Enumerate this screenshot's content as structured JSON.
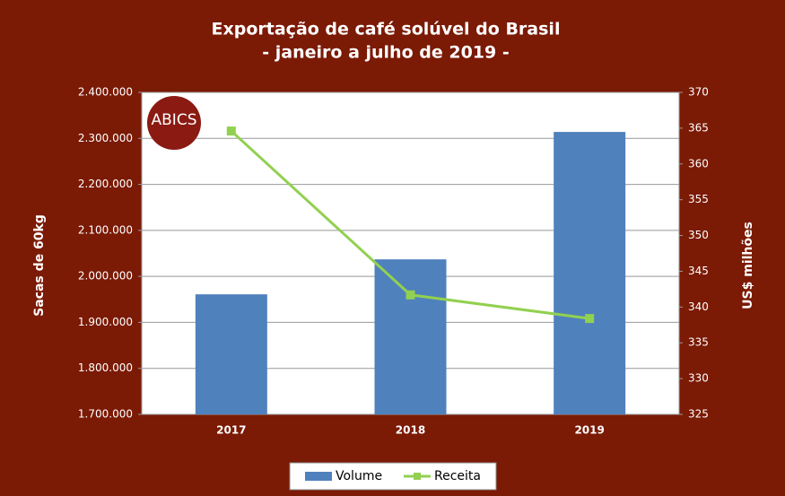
{
  "chart_data": {
    "type": "bar-line",
    "title": "Exportação de café solúvel do Brasil",
    "subtitle": "- janeiro a julho de 2019 -",
    "logo": "ABICS",
    "categories": [
      "2017",
      "2018",
      "2019"
    ],
    "series": [
      {
        "name": "Volume",
        "type": "bar",
        "color": "#4f81bd",
        "values": [
          1961000,
          2037000,
          2314000
        ]
      },
      {
        "name": "Receita",
        "type": "line",
        "color": "#92d050",
        "axis": "y2",
        "values": [
          364.6,
          341.7,
          338.4
        ]
      }
    ],
    "ylabel": "Sacas de 60kg",
    "y2label": "US$ milhões",
    "ylim": [
      1700000,
      2400000
    ],
    "yticks": [
      {
        "value": 1700000,
        "label": "1.700.000"
      },
      {
        "value": 1800000,
        "label": "1.800.000"
      },
      {
        "value": 1900000,
        "label": "1.900.000"
      },
      {
        "value": 2000000,
        "label": "2.000.000"
      },
      {
        "value": 2100000,
        "label": "2.100.000"
      },
      {
        "value": 2200000,
        "label": "2.200.000"
      },
      {
        "value": 2300000,
        "label": "2.300.000"
      },
      {
        "value": 2400000,
        "label": "2.400.000"
      }
    ],
    "y2lim": [
      325,
      370
    ],
    "y2ticks": [
      325,
      330,
      335,
      340,
      345,
      350,
      355,
      360,
      365,
      370
    ],
    "grid": true,
    "legend": "bottom"
  }
}
